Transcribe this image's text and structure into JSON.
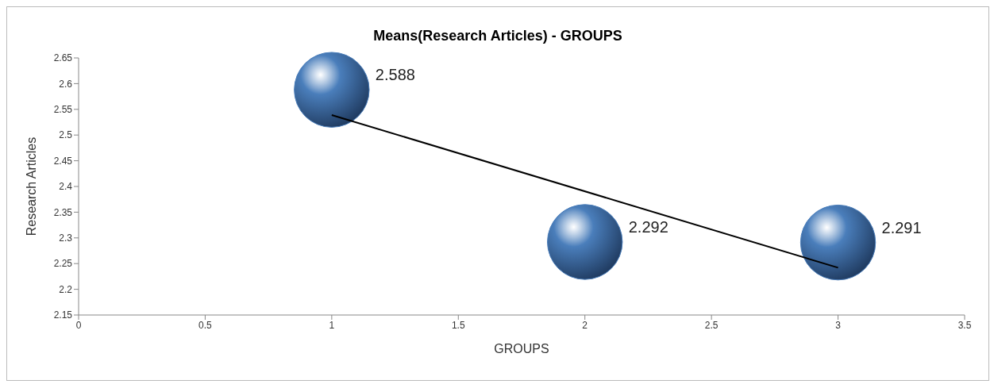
{
  "chart_data": {
    "type": "bubble",
    "title": "Means(Research Articles) - GROUPS",
    "xlabel": "GROUPS",
    "ylabel": "Research Articles",
    "xlim": [
      0,
      3.5
    ],
    "xticks": [
      0,
      0.5,
      1,
      1.5,
      2,
      2.5,
      3,
      3.5
    ],
    "ylim": [
      2.15,
      2.65
    ],
    "yticks": [
      2.15,
      2.2,
      2.25,
      2.3,
      2.35,
      2.4,
      2.45,
      2.5,
      2.55,
      2.6,
      2.65
    ],
    "series": [
      {
        "color": "#4a7ebb",
        "x": [
          1,
          2,
          3
        ],
        "values": [
          2.588,
          2.292,
          2.291
        ],
        "value_labels": [
          "2.588",
          "2.292",
          "2.291"
        ],
        "sizes": [
          1,
          1,
          1
        ]
      },
      {
        "type": "line",
        "color": "#000000",
        "x": [
          1,
          3
        ],
        "values": [
          2.539,
          2.242
        ]
      }
    ]
  }
}
